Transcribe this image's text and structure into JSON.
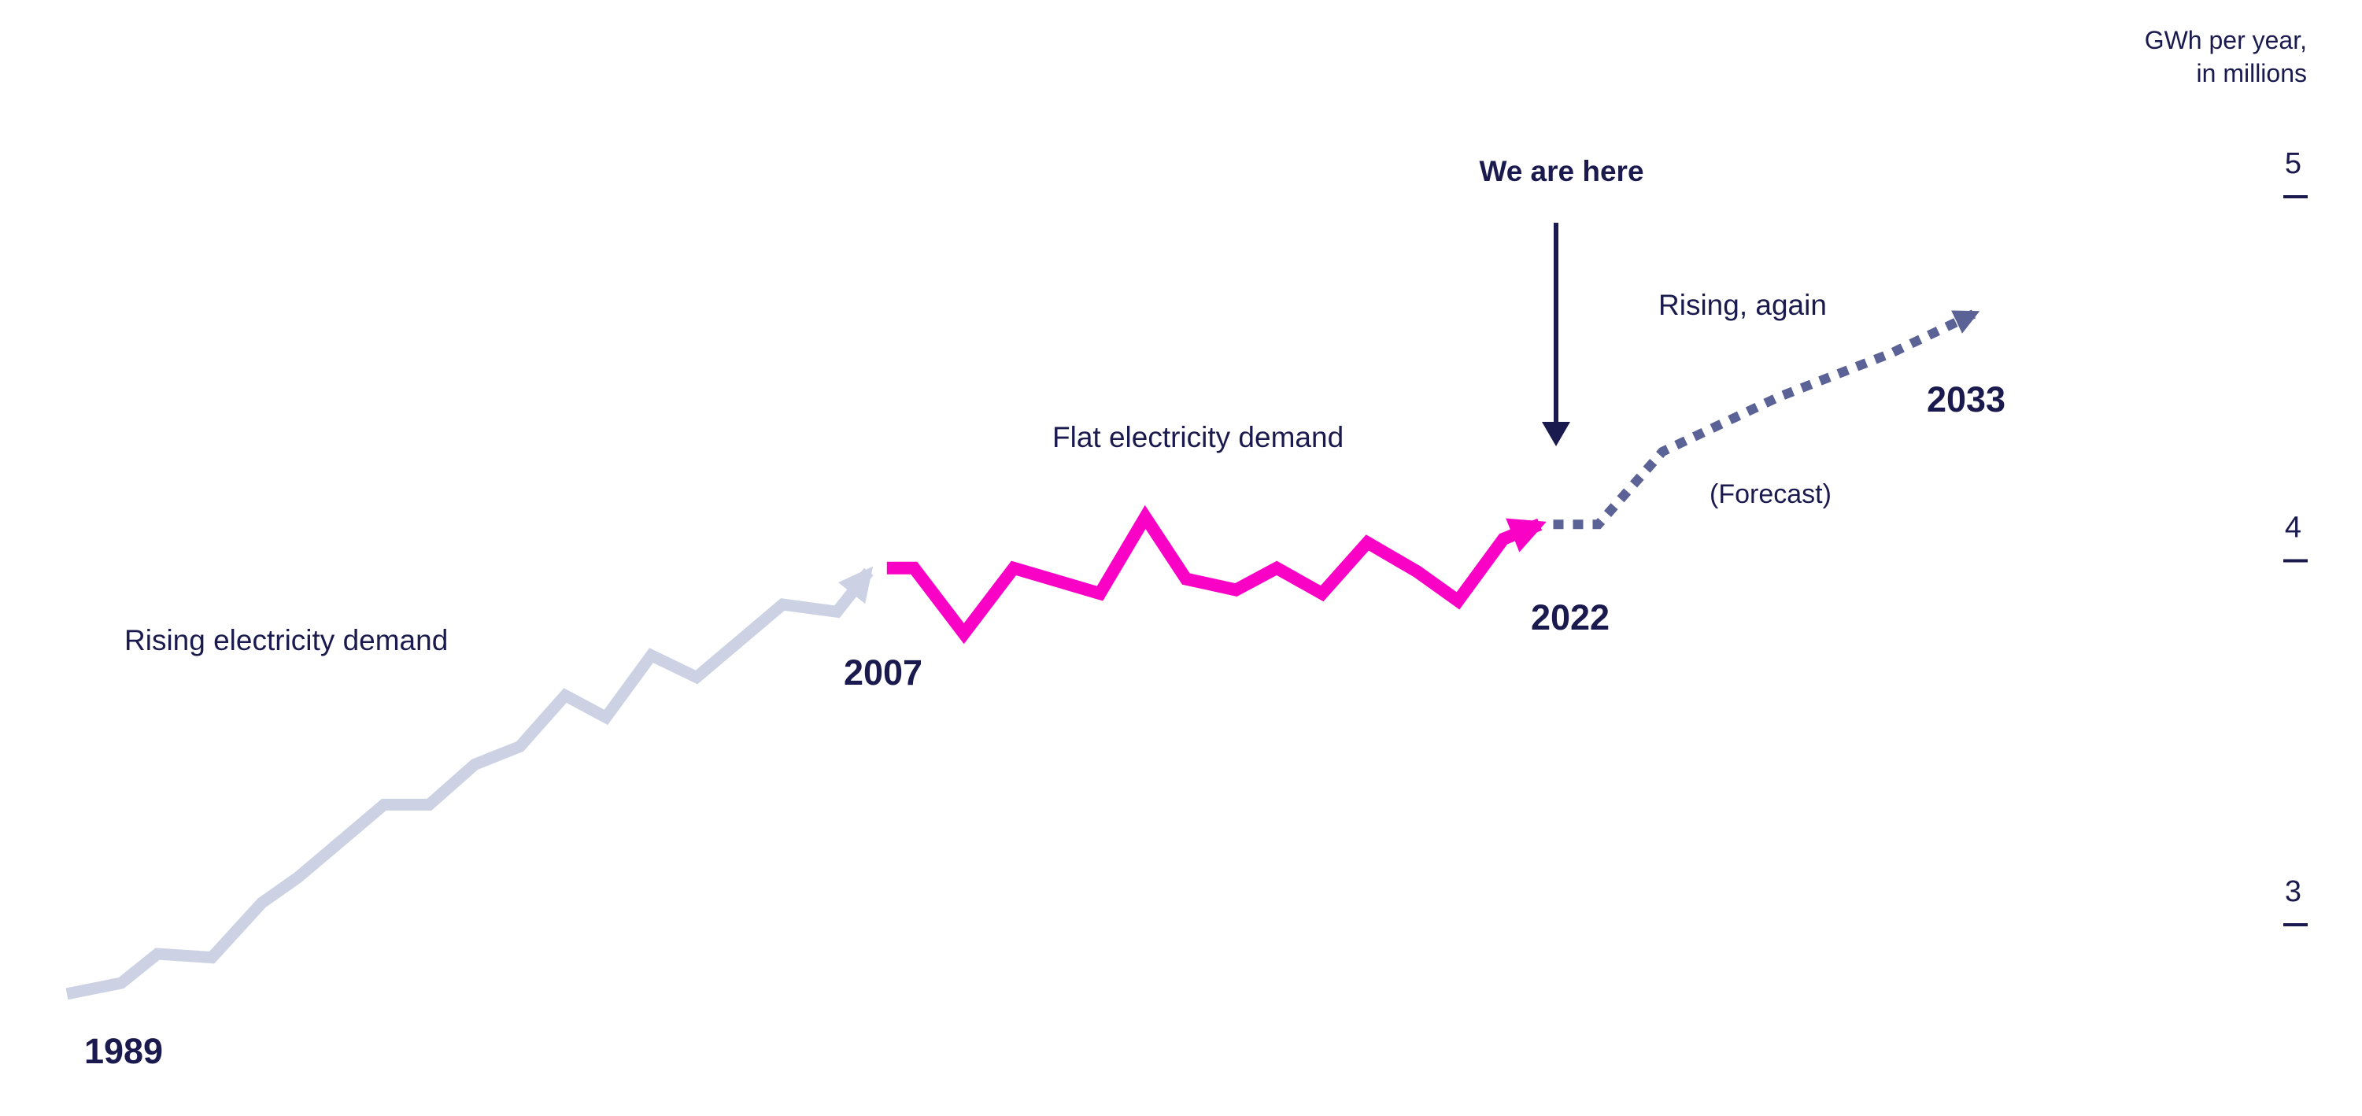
{
  "axis": {
    "title_line1": "GWh per year,",
    "title_line2": "in millions"
  },
  "annotations": {
    "we_are_here": "We are here",
    "phase_rising": "Rising electricity demand",
    "phase_flat": "Flat electricity demand",
    "phase_rising_again": "Rising, again",
    "forecast_note": "(Forecast)",
    "year_1989": "1989",
    "year_2007": "2007",
    "year_2022": "2022",
    "year_2033": "2033"
  },
  "colors": {
    "navy_text": "#1a1a4e",
    "historic_line": "#ccd2e3",
    "flat_line": "#fa01c6",
    "forecast_line": "#5a6296"
  },
  "chart_data": {
    "type": "line",
    "title": "US electricity demand over time",
    "ylabel": "GWh per year, in millions",
    "yticks": [
      5,
      4,
      3
    ],
    "ylim": [
      2.5,
      5.3
    ],
    "x_range": [
      1989,
      2033
    ],
    "x_milestone_years": [
      1989,
      2007,
      2022,
      2033
    ],
    "grid": false,
    "legend": "inline phase labels",
    "series": [
      {
        "id": "rising",
        "name": "Rising electricity demand",
        "period": "1989-2007",
        "style": "solid-arrow",
        "color": "#ccd2e3",
        "points": [
          [
            1989.0,
            2.81
          ],
          [
            1990.2,
            2.84
          ],
          [
            1991.0,
            2.92
          ],
          [
            1992.2,
            2.91
          ],
          [
            1993.3,
            3.06
          ],
          [
            1994.1,
            3.13
          ],
          [
            1996.0,
            3.33
          ],
          [
            1997.0,
            3.33
          ],
          [
            1998.0,
            3.44
          ],
          [
            1999.0,
            3.49
          ],
          [
            2000.0,
            3.63
          ],
          [
            2000.9,
            3.57
          ],
          [
            2001.9,
            3.74
          ],
          [
            2002.9,
            3.68
          ],
          [
            2004.8,
            3.88
          ],
          [
            2006.0,
            3.86
          ],
          [
            2006.7,
            3.97
          ]
        ]
      },
      {
        "id": "flat",
        "name": "Flat electricity demand",
        "period": "2007-2022",
        "style": "solid-arrow",
        "color": "#fa01c6",
        "points": [
          [
            2007.1,
            3.98
          ],
          [
            2007.7,
            3.98
          ],
          [
            2008.8,
            3.8
          ],
          [
            2009.9,
            3.98
          ],
          [
            2011.8,
            3.91
          ],
          [
            2012.8,
            4.12
          ],
          [
            2013.7,
            3.95
          ],
          [
            2014.8,
            3.92
          ],
          [
            2015.7,
            3.98
          ],
          [
            2016.7,
            3.91
          ],
          [
            2017.7,
            4.05
          ],
          [
            2018.8,
            3.97
          ],
          [
            2019.7,
            3.89
          ],
          [
            2020.7,
            4.06
          ],
          [
            2021.5,
            4.1
          ]
        ]
      },
      {
        "id": "forecast",
        "name": "Rising, again (Forecast)",
        "period": "2022-2033",
        "style": "dotted-arrow",
        "color": "#5a6296",
        "points": [
          [
            2021.8,
            4.1
          ],
          [
            2022.9,
            4.1
          ],
          [
            2024.5,
            4.3
          ],
          [
            2027.4,
            4.45
          ],
          [
            2030.2,
            4.57
          ],
          [
            2032.3,
            4.68
          ]
        ]
      }
    ]
  }
}
